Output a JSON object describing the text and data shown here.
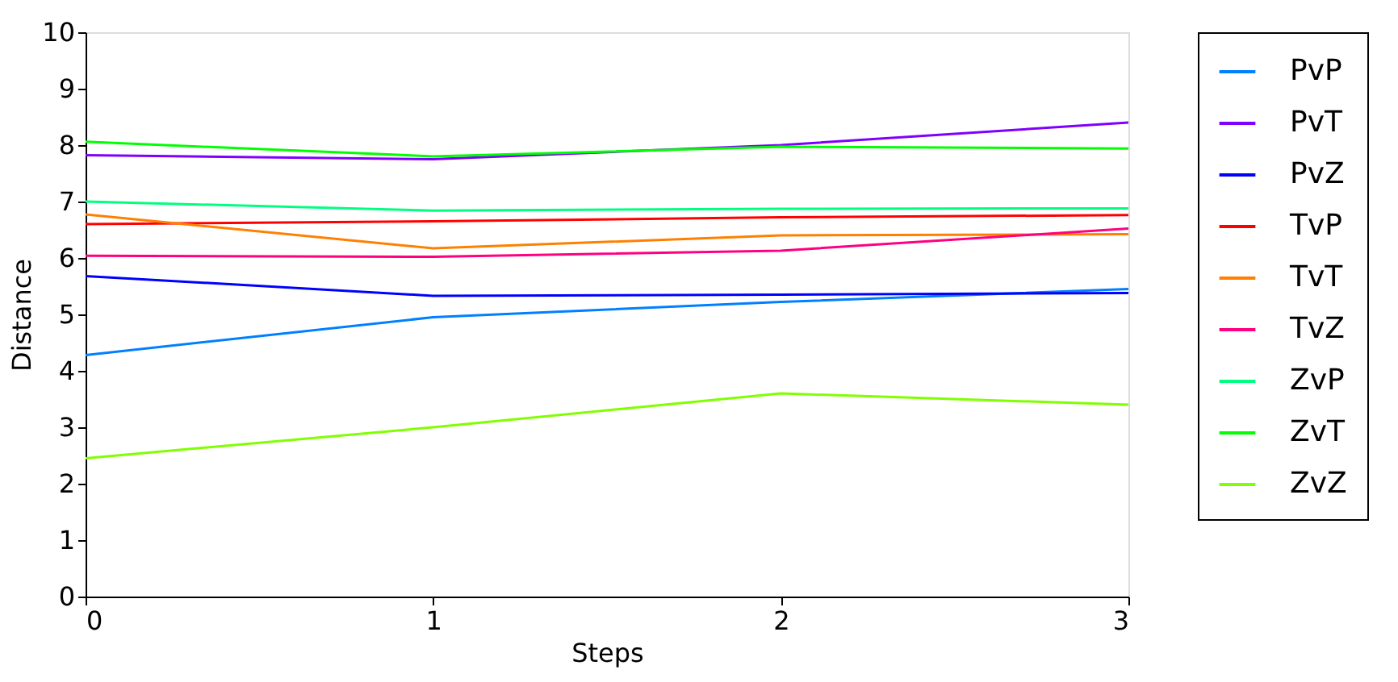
{
  "chart_data": {
    "type": "line",
    "xlabel": "Steps",
    "ylabel": "Distance",
    "x": [
      0,
      1,
      2,
      3
    ],
    "xlim": [
      0,
      3
    ],
    "xticks": [
      0,
      1,
      2,
      3
    ],
    "ylim": [
      0,
      10
    ],
    "yticks": [
      0,
      1,
      2,
      3,
      4,
      5,
      6,
      7,
      8,
      9,
      10
    ],
    "grid": false,
    "legend": "right",
    "marker": "none",
    "line_style": "solid",
    "series": [
      {
        "name": "PvP",
        "color": "#0080ff",
        "values": [
          4.28,
          4.95,
          5.22,
          5.45
        ]
      },
      {
        "name": "PvT",
        "color": "#8000ff",
        "values": [
          7.82,
          7.75,
          8.0,
          8.4
        ]
      },
      {
        "name": "PvZ",
        "color": "#0000ff",
        "values": [
          5.68,
          5.33,
          5.35,
          5.38
        ]
      },
      {
        "name": "TvP",
        "color": "#ff0000",
        "values": [
          6.6,
          6.65,
          6.72,
          6.76
        ]
      },
      {
        "name": "TvT",
        "color": "#ff8000",
        "values": [
          6.77,
          6.17,
          6.4,
          6.42
        ]
      },
      {
        "name": "TvZ",
        "color": "#ff0080",
        "values": [
          6.04,
          6.02,
          6.13,
          6.52
        ]
      },
      {
        "name": "ZvP",
        "color": "#00ff80",
        "values": [
          7.0,
          6.84,
          6.87,
          6.88
        ]
      },
      {
        "name": "ZvT",
        "color": "#00ff00",
        "values": [
          8.06,
          7.8,
          7.97,
          7.94
        ]
      },
      {
        "name": "ZvZ",
        "color": "#80ff00",
        "values": [
          2.45,
          3.0,
          3.6,
          3.4
        ]
      }
    ]
  }
}
